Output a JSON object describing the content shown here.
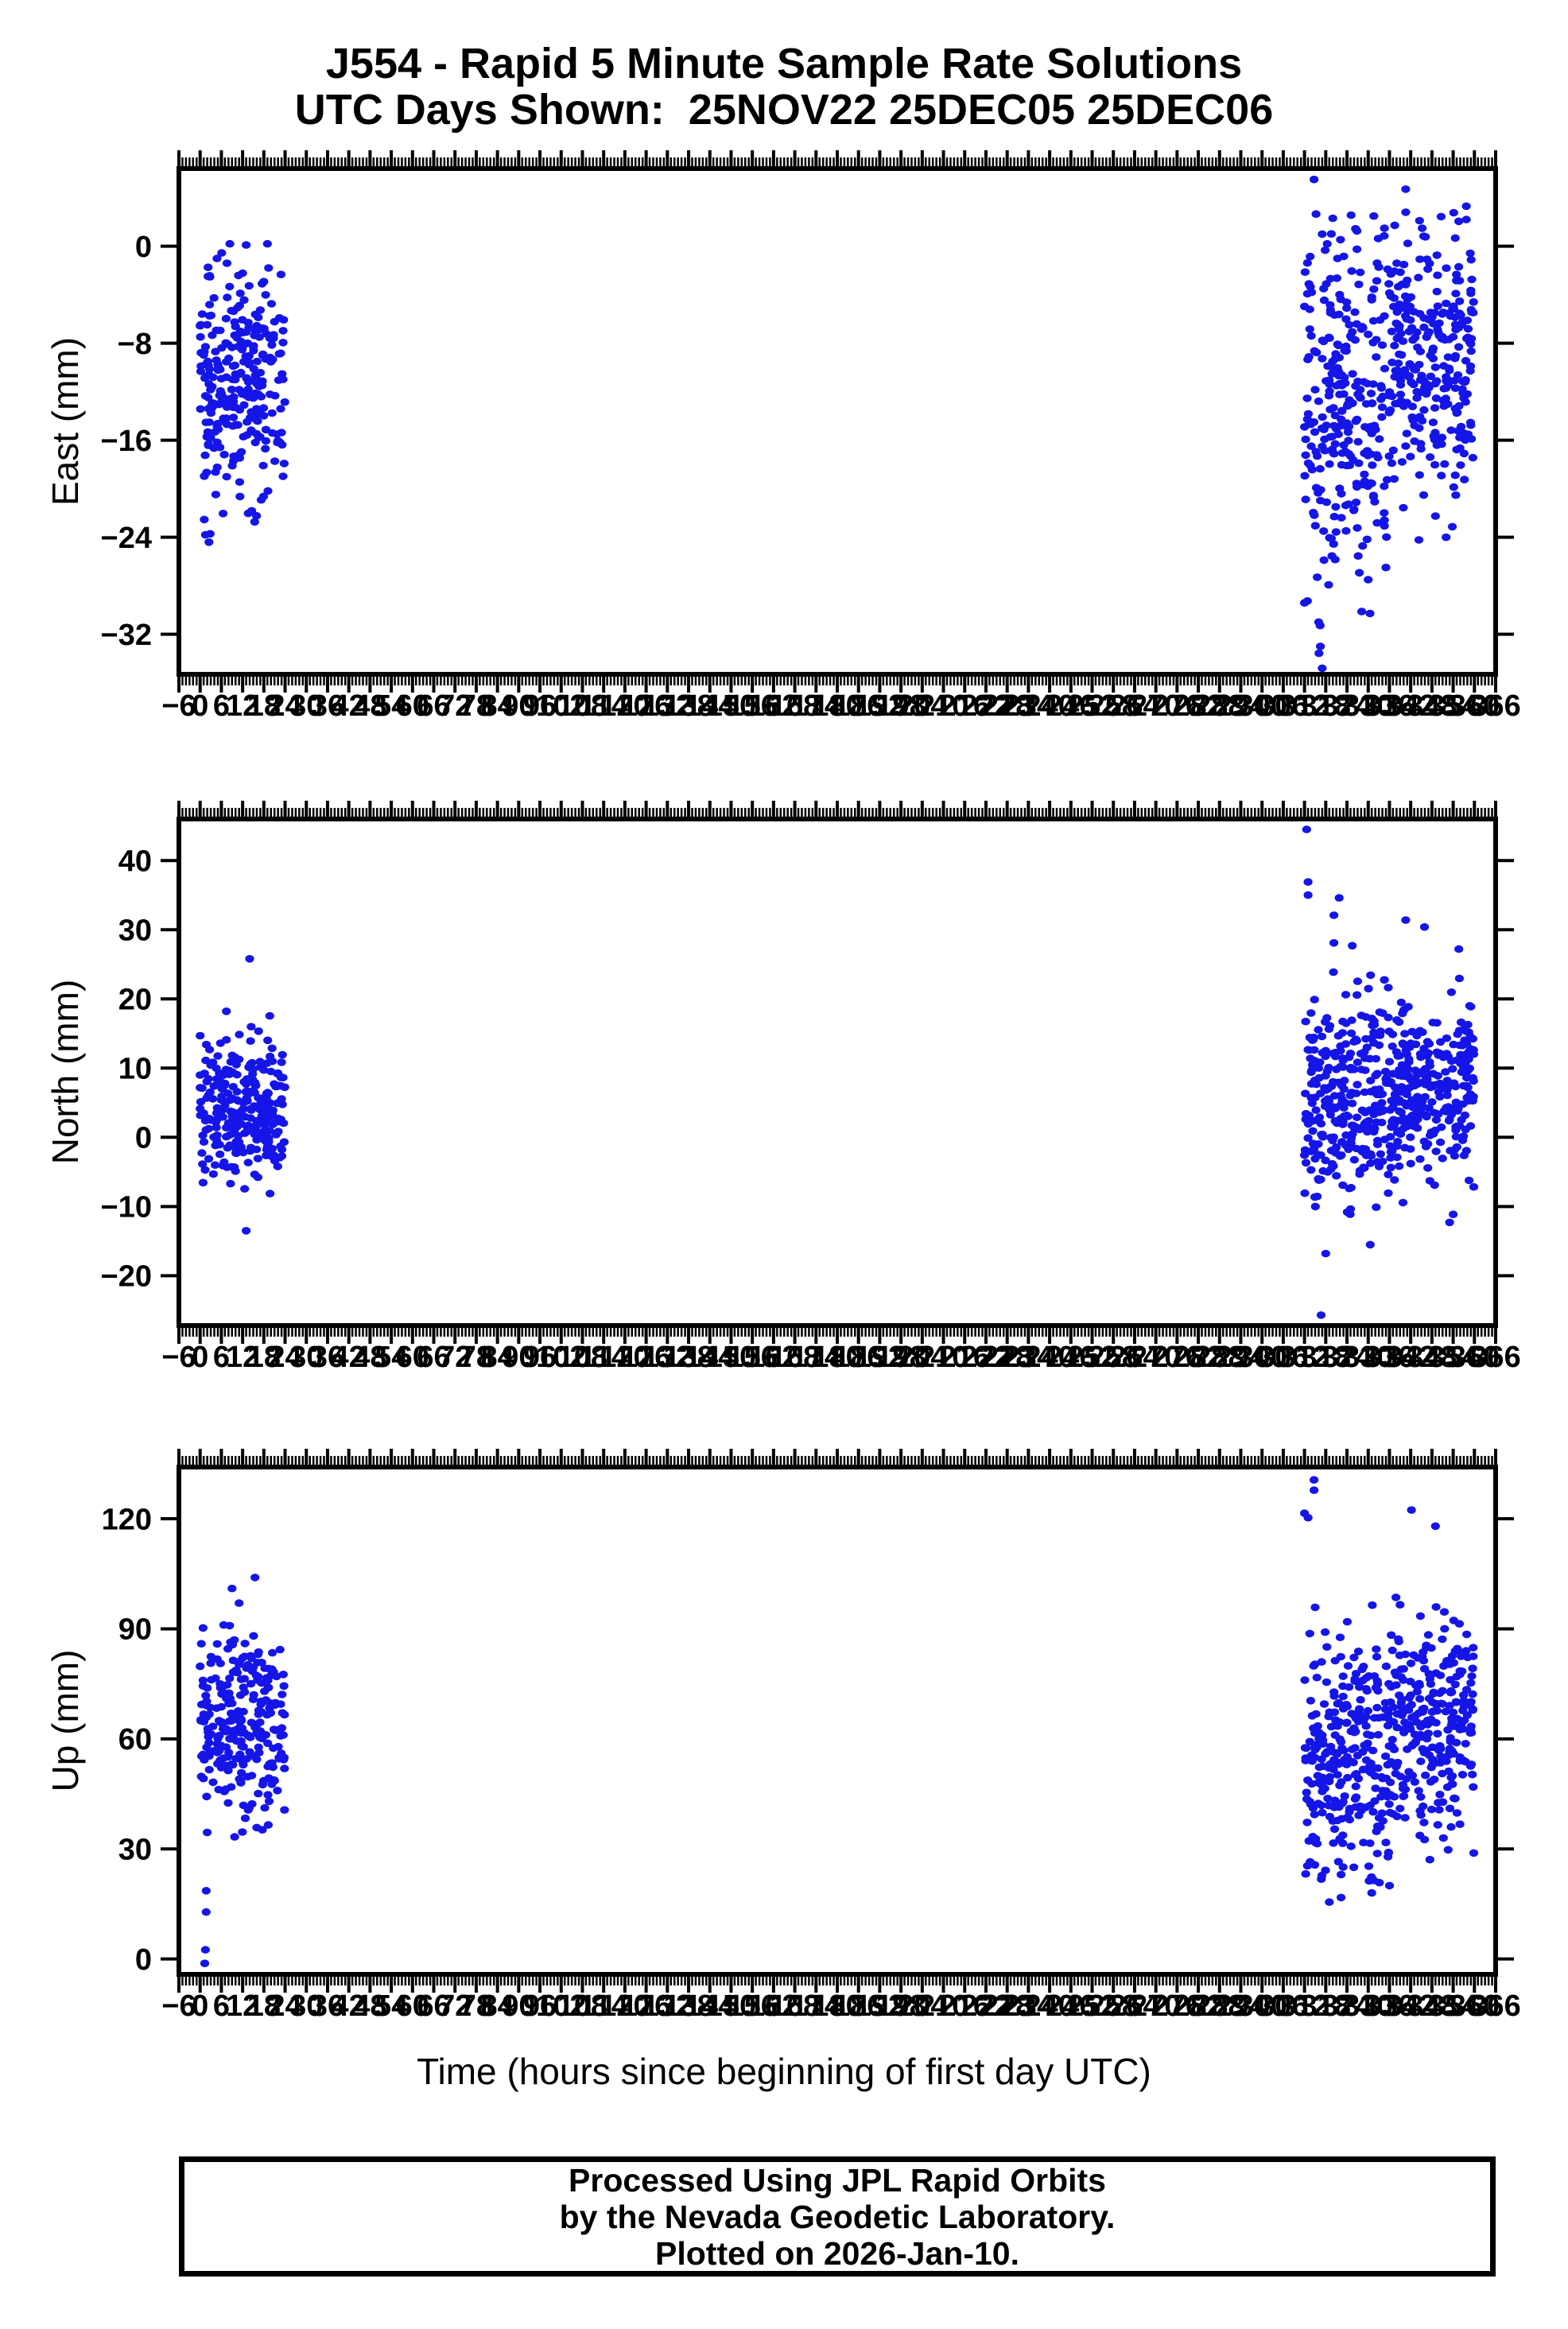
{
  "title": {
    "line1": "J554 - Rapid 5 Minute Sample Rate Solutions",
    "line2": "UTC Days Shown:  25NOV22 25DEC05 25DEC06"
  },
  "xaxis_title": "Time (hours since beginning of first day UTC)",
  "footer": {
    "line1": "Processed Using JPL Rapid Orbits",
    "line2": "by the Nevada Geodetic Laboratory.",
    "line3": "Plotted on 2026-Jan-10."
  },
  "colors": {
    "point": "#1515e8",
    "axis": "#000000",
    "background": "#ffffff",
    "text": "#000000"
  },
  "chart_data": {
    "type": "scatter",
    "station": "J554",
    "days_shown": [
      "25NOV22",
      "25DEC05",
      "25DEC06"
    ],
    "xlabel": "Time (hours since beginning of first day UTC)",
    "x_range": [
      -6,
      366
    ],
    "x_major_tick_step": 6,
    "x_minor_tick_step": 1,
    "x_tick_label_step": 6,
    "grid": "off",
    "legend": "none",
    "marker": {
      "shape": "ellipse",
      "rx": 5.6,
      "ry": 4.8
    },
    "sample_interval_hours": 0.0833,
    "panels": [
      {
        "name": "east",
        "ylabel": "East (mm)",
        "y_range": [
          -35.3,
          6.4
        ],
        "yticks": [
          0,
          -8,
          -16,
          -24,
          -32
        ],
        "clusters": [
          {
            "x_start": 0,
            "x_end": 24,
            "count": 272,
            "y_mean": -11.5,
            "y_sd": 4.8,
            "y_min": -24.5,
            "y_max": 0.3,
            "seed": 11
          },
          {
            "x_start": 312,
            "x_end": 336,
            "count": 276,
            "y_mean": -13.0,
            "y_sd": 7.5,
            "y_min": -35.0,
            "y_max": 3.0,
            "seed": 12
          },
          {
            "x_start": 336,
            "x_end": 360,
            "count": 276,
            "y_mean": -9.5,
            "y_sd": 5.5,
            "y_min": -26.0,
            "y_max": 4.0,
            "seed": 13
          }
        ],
        "outliers": [
          [
            314.7,
            5.5
          ],
          [
            340.6,
            4.7
          ],
          [
            340.6,
            2.8
          ],
          [
            357.7,
            3.3
          ],
          [
            357.7,
            2.2
          ],
          [
            320,
            2.3
          ],
          [
            317,
            1.0
          ],
          [
            316,
            -31.0
          ],
          [
            316.5,
            -33.0
          ],
          [
            317,
            -34.8
          ],
          [
            330,
            -27.5
          ],
          [
            352,
            -24.0
          ],
          [
            1.5,
            -23.8
          ],
          [
            2.5,
            -24.4
          ],
          [
            8.4,
            0.2
          ],
          [
            13,
            0.1
          ],
          [
            19,
            0.2
          ]
        ]
      },
      {
        "name": "north",
        "ylabel": "North (mm)",
        "y_range": [
          -27.2,
          46.0
        ],
        "yticks": [
          40,
          30,
          20,
          10,
          0,
          -10,
          -20
        ],
        "clusters": [
          {
            "x_start": 0,
            "x_end": 24,
            "count": 272,
            "y_mean": 4.5,
            "y_sd": 5.2,
            "y_min": -12.2,
            "y_max": 21.5,
            "seed": 21
          },
          {
            "x_start": 312,
            "x_end": 336,
            "count": 276,
            "y_mean": 5.5,
            "y_sd": 8.0,
            "y_min": -18.0,
            "y_max": 25.0,
            "seed": 22
          },
          {
            "x_start": 336,
            "x_end": 360,
            "count": 276,
            "y_mean": 6.5,
            "y_sd": 6.0,
            "y_min": -13.5,
            "y_max": 23.0,
            "seed": 23
          }
        ],
        "outliers": [
          [
            14,
            25.8
          ],
          [
            13,
            -13.5
          ],
          [
            312.6,
            44.5
          ],
          [
            313,
            36.9
          ],
          [
            313,
            35.0
          ],
          [
            321.8,
            34.6
          ],
          [
            320.3,
            32.1
          ],
          [
            340.6,
            31.4
          ],
          [
            345.9,
            30.4
          ],
          [
            320.3,
            28.1
          ],
          [
            325.5,
            27.7
          ],
          [
            355.6,
            27.2
          ],
          [
            316.7,
            -25.7
          ],
          [
            318,
            -16.8
          ],
          [
            353,
            -12.3
          ]
        ]
      },
      {
        "name": "up",
        "ylabel": "Up (mm)",
        "y_range": [
          -4.2,
          134.1
        ],
        "yticks": [
          120,
          90,
          60,
          30,
          0
        ],
        "clusters": [
          {
            "x_start": 0,
            "x_end": 24,
            "count": 272,
            "y_mean": 64,
            "y_sd": 13,
            "y_min": 28,
            "y_max": 98,
            "seed": 31
          },
          {
            "x_start": 312,
            "x_end": 336,
            "count": 276,
            "y_mean": 54,
            "y_sd": 17,
            "y_min": 16,
            "y_max": 106,
            "seed": 32
          },
          {
            "x_start": 336,
            "x_end": 360,
            "count": 276,
            "y_mean": 62,
            "y_sd": 15,
            "y_min": 20,
            "y_max": 106,
            "seed": 33
          }
        ],
        "outliers": [
          [
            1.3,
            -1.2
          ],
          [
            1.5,
            2.5
          ],
          [
            1.7,
            12.8
          ],
          [
            1.7,
            18.6
          ],
          [
            15.5,
            104
          ],
          [
            9,
            101
          ],
          [
            11,
            97
          ],
          [
            314.7,
            130.6
          ],
          [
            314.7,
            127.8
          ],
          [
            312,
            121.5
          ],
          [
            313,
            120.3
          ],
          [
            342.2,
            122.4
          ],
          [
            349,
            118
          ],
          [
            319,
            15.5
          ],
          [
            331,
            18
          ],
          [
            336,
            20
          ]
        ]
      }
    ]
  }
}
